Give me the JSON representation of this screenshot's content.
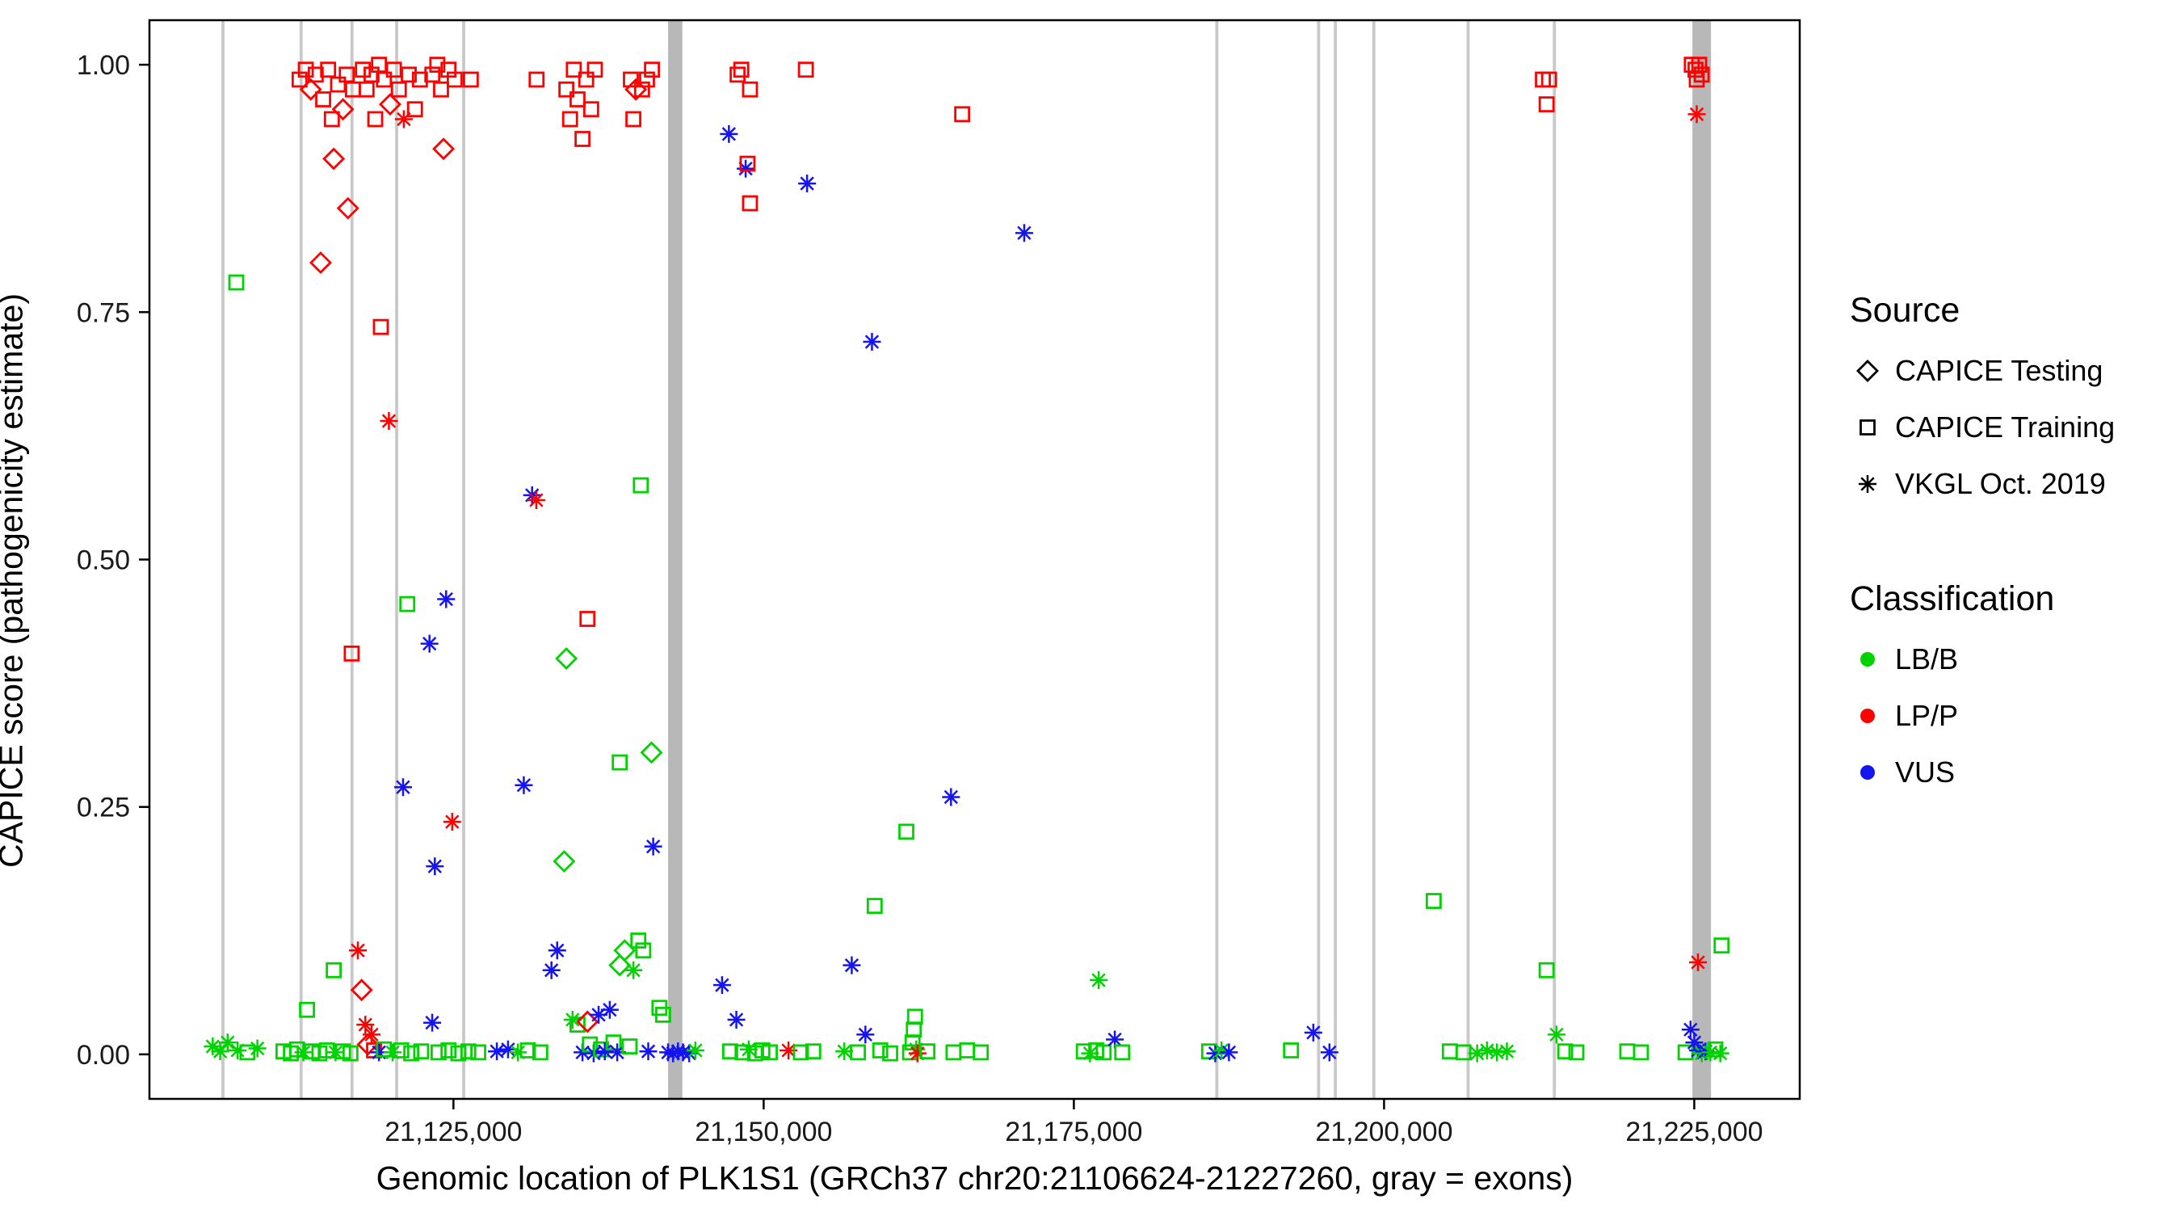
{
  "chart_data": {
    "type": "scatter",
    "title": "",
    "xlabel": "Genomic location of PLK1S1 (GRCh37 chr20:21106624-21227260, gray = exons)",
    "ylabel": "CAPICE score (pathogenicity estimate)",
    "xlim": [
      21100500,
      21233500
    ],
    "ylim": [
      -0.045,
      1.045
    ],
    "grid": false,
    "panel_border_color": "#000000",
    "background_color": "#ffffff",
    "exon_color_thin": "#c9c9c9",
    "exon_color_thick": "#b8b8b8",
    "x_ticks": [
      {
        "value": 21125000,
        "label": "21,125,000"
      },
      {
        "value": 21150000,
        "label": "21,150,000"
      },
      {
        "value": 21175000,
        "label": "21,175,000"
      },
      {
        "value": 21200000,
        "label": "21,200,000"
      },
      {
        "value": 21225000,
        "label": "21,225,000"
      }
    ],
    "y_ticks": [
      {
        "value": 0.0,
        "label": "0.00"
      },
      {
        "value": 0.25,
        "label": "0.25"
      },
      {
        "value": 0.5,
        "label": "0.50"
      },
      {
        "value": 0.75,
        "label": "0.75"
      },
      {
        "value": 1.0,
        "label": "1.00"
      }
    ],
    "exons": [
      [
        21106300,
        21106550
      ],
      [
        21112600,
        21112850
      ],
      [
        21116700,
        21116950
      ],
      [
        21120300,
        21120550
      ],
      [
        21125700,
        21125950
      ],
      [
        21142300,
        21143450
      ],
      [
        21186400,
        21186650
      ],
      [
        21194600,
        21194850
      ],
      [
        21195950,
        21196200
      ],
      [
        21199050,
        21199300
      ],
      [
        21206650,
        21206900
      ],
      [
        21213600,
        21213850
      ],
      [
        21224850,
        21226350
      ]
    ],
    "marker_codes": {
      "d": "CAPICE Testing (open diamond)",
      "s": "CAPICE Training (open square)",
      "a": "VKGL Oct. 2019 (asterisk)"
    },
    "class_codes": {
      "g": "LB/B",
      "r": "LP/P",
      "b": "VUS"
    },
    "colors": {
      "g": "#00d300",
      "r": "#ff0000",
      "b": "#1414f0"
    },
    "points": [
      [
        21105600,
        0.008,
        "a",
        "g"
      ],
      [
        21106200,
        0.003,
        "a",
        "g"
      ],
      [
        21106800,
        0.012,
        "a",
        "g"
      ],
      [
        21107500,
        0.78,
        "s",
        "g"
      ],
      [
        21107600,
        0.004,
        "a",
        "g"
      ],
      [
        21108400,
        0.002,
        "s",
        "g"
      ],
      [
        21109200,
        0.006,
        "a",
        "g"
      ],
      [
        21111300,
        0.003,
        "s",
        "g"
      ],
      [
        21111900,
        0.001,
        "s",
        "g"
      ],
      [
        21112400,
        0.005,
        "s",
        "g"
      ],
      [
        21112900,
        0.002,
        "a",
        "g"
      ],
      [
        21113200,
        0.045,
        "s",
        "g"
      ],
      [
        21113600,
        0.003,
        "s",
        "g"
      ],
      [
        21114200,
        0.001,
        "s",
        "g"
      ],
      [
        21114800,
        0.004,
        "s",
        "g"
      ],
      [
        21115350,
        0.085,
        "s",
        "g"
      ],
      [
        21115500,
        0.002,
        "a",
        "g"
      ],
      [
        21116100,
        0.003,
        "s",
        "g"
      ],
      [
        21116700,
        0.001,
        "s",
        "g"
      ],
      [
        21112600,
        0.985,
        "s",
        "r"
      ],
      [
        21113100,
        0.995,
        "s",
        "r"
      ],
      [
        21113500,
        0.975,
        "d",
        "r"
      ],
      [
        21113900,
        0.99,
        "s",
        "r"
      ],
      [
        21114300,
        0.8,
        "d",
        "r"
      ],
      [
        21114500,
        0.965,
        "s",
        "r"
      ],
      [
        21114900,
        0.995,
        "s",
        "r"
      ],
      [
        21115200,
        0.945,
        "s",
        "r"
      ],
      [
        21115350,
        0.905,
        "d",
        "r"
      ],
      [
        21115700,
        0.98,
        "s",
        "r"
      ],
      [
        21116100,
        0.955,
        "d",
        "r"
      ],
      [
        21116400,
        0.99,
        "s",
        "r"
      ],
      [
        21116500,
        0.855,
        "d",
        "r"
      ],
      [
        21116800,
        0.405,
        "s",
        "r"
      ],
      [
        21116900,
        0.975,
        "s",
        "r"
      ],
      [
        21117300,
        0.105,
        "a",
        "r"
      ],
      [
        21117600,
        0.065,
        "d",
        "r"
      ],
      [
        21117900,
        0.03,
        "a",
        "r"
      ],
      [
        21118100,
        0.01,
        "d",
        "r"
      ],
      [
        21118400,
        0.02,
        "a",
        "r"
      ],
      [
        21118600,
        0.004,
        "s",
        "r"
      ],
      [
        21119000,
        0.002,
        "a",
        "b"
      ],
      [
        21119400,
        0.005,
        "s",
        "g"
      ],
      [
        21117700,
        0.995,
        "s",
        "r"
      ],
      [
        21118000,
        0.975,
        "s",
        "r"
      ],
      [
        21118400,
        0.99,
        "s",
        "r"
      ],
      [
        21118700,
        0.945,
        "s",
        "r"
      ],
      [
        21119000,
        1.0,
        "s",
        "r"
      ],
      [
        21119150,
        0.735,
        "s",
        "r"
      ],
      [
        21119400,
        0.985,
        "s",
        "r"
      ],
      [
        21119800,
        0.64,
        "a",
        "r"
      ],
      [
        21119900,
        0.96,
        "d",
        "r"
      ],
      [
        21120200,
        0.995,
        "s",
        "r"
      ],
      [
        21120600,
        0.975,
        "s",
        "r"
      ],
      [
        21121000,
        0.945,
        "a",
        "r"
      ],
      [
        21121400,
        0.99,
        "s",
        "r"
      ],
      [
        21121900,
        0.955,
        "s",
        "r"
      ],
      [
        21122300,
        0.985,
        "s",
        "r"
      ],
      [
        21120940,
        0.27,
        "a",
        "b"
      ],
      [
        21121280,
        0.455,
        "s",
        "g"
      ],
      [
        21123070,
        0.415,
        "a",
        "b"
      ],
      [
        21123500,
        0.19,
        "a",
        "b"
      ],
      [
        21124410,
        0.46,
        "a",
        "b"
      ],
      [
        21124900,
        0.235,
        "a",
        "r"
      ],
      [
        21123300,
        0.99,
        "s",
        "r"
      ],
      [
        21123700,
        1.0,
        "s",
        "r"
      ],
      [
        21124000,
        0.975,
        "s",
        "r"
      ],
      [
        21124200,
        0.915,
        "d",
        "r"
      ],
      [
        21124600,
        0.995,
        "s",
        "r"
      ],
      [
        21125100,
        0.985,
        "s",
        "r"
      ],
      [
        21126400,
        0.985,
        "s",
        "r"
      ],
      [
        21120100,
        0.002,
        "a",
        "g"
      ],
      [
        21120800,
        0.004,
        "s",
        "g"
      ],
      [
        21121600,
        0.001,
        "s",
        "g"
      ],
      [
        21122400,
        0.003,
        "s",
        "g"
      ],
      [
        21123290,
        0.032,
        "a",
        "b"
      ],
      [
        21123800,
        0.002,
        "s",
        "g"
      ],
      [
        21124600,
        0.004,
        "s",
        "g"
      ],
      [
        21125400,
        0.001,
        "s",
        "g"
      ],
      [
        21126200,
        0.003,
        "s",
        "g"
      ],
      [
        21127000,
        0.002,
        "s",
        "g"
      ],
      [
        21128500,
        0.003,
        "a",
        "b"
      ],
      [
        21129400,
        0.005,
        "a",
        "b"
      ],
      [
        21130200,
        0.002,
        "a",
        "g"
      ],
      [
        21130670,
        0.272,
        "a",
        "b"
      ],
      [
        21131000,
        0.004,
        "s",
        "g"
      ],
      [
        21131340,
        0.565,
        "a",
        "b"
      ],
      [
        21131680,
        0.56,
        "a",
        "r"
      ],
      [
        21131700,
        0.985,
        "s",
        "r"
      ],
      [
        21132000,
        0.002,
        "s",
        "g"
      ],
      [
        21132900,
        0.085,
        "a",
        "b"
      ],
      [
        21133360,
        0.105,
        "a",
        "b"
      ],
      [
        21133920,
        0.195,
        "d",
        "g"
      ],
      [
        21134100,
        0.975,
        "s",
        "r"
      ],
      [
        21134400,
        0.945,
        "s",
        "r"
      ],
      [
        21134700,
        0.995,
        "s",
        "r"
      ],
      [
        21135000,
        0.965,
        "s",
        "r"
      ],
      [
        21135400,
        0.925,
        "s",
        "r"
      ],
      [
        21135700,
        0.985,
        "s",
        "r"
      ],
      [
        21136100,
        0.955,
        "s",
        "r"
      ],
      [
        21136400,
        0.995,
        "s",
        "r"
      ],
      [
        21134100,
        0.4,
        "d",
        "g"
      ],
      [
        21135800,
        0.44,
        "s",
        "r"
      ],
      [
        21134600,
        0.035,
        "a",
        "g"
      ],
      [
        21135000,
        0.03,
        "s",
        "g"
      ],
      [
        21135400,
        0.002,
        "a",
        "b"
      ],
      [
        21135800,
        0.033,
        "d",
        "r"
      ],
      [
        21136000,
        0.01,
        "s",
        "g"
      ],
      [
        21136300,
        0.001,
        "a",
        "b"
      ],
      [
        21136700,
        0.04,
        "a",
        "b"
      ],
      [
        21136900,
        0.005,
        "s",
        "g"
      ],
      [
        21137200,
        0.003,
        "a",
        "b"
      ],
      [
        21137600,
        0.045,
        "a",
        "b"
      ],
      [
        21137900,
        0.012,
        "s",
        "g"
      ],
      [
        21138200,
        0.002,
        "a",
        "b"
      ],
      [
        21138400,
        0.09,
        "d",
        "g"
      ],
      [
        21138800,
        0.105,
        "d",
        "g"
      ],
      [
        21139200,
        0.008,
        "s",
        "g"
      ],
      [
        21139500,
        0.085,
        "a",
        "g"
      ],
      [
        21139900,
        0.115,
        "s",
        "g"
      ],
      [
        21140300,
        0.105,
        "s",
        "g"
      ],
      [
        21140700,
        0.003,
        "a",
        "b"
      ],
      [
        21141100,
        0.21,
        "a",
        "b"
      ],
      [
        21141600,
        0.047,
        "s",
        "g"
      ],
      [
        21141900,
        0.04,
        "s",
        "g"
      ],
      [
        21142300,
        0.002,
        "a",
        "b"
      ],
      [
        21142700,
        0.001,
        "a",
        "b"
      ],
      [
        21143100,
        0.003,
        "a",
        "b"
      ],
      [
        21143500,
        0.002,
        "a",
        "b"
      ],
      [
        21144000,
        0.001,
        "a",
        "b"
      ],
      [
        21144500,
        0.004,
        "a",
        "g"
      ],
      [
        21138400,
        0.295,
        "s",
        "g"
      ],
      [
        21140100,
        0.575,
        "s",
        "g"
      ],
      [
        21140960,
        0.305,
        "d",
        "g"
      ],
      [
        21139300,
        0.985,
        "s",
        "r"
      ],
      [
        21139700,
        0.975,
        "d",
        "r"
      ],
      [
        21140200,
        0.975,
        "s",
        "r"
      ],
      [
        21140600,
        0.985,
        "s",
        "r"
      ],
      [
        21139500,
        0.945,
        "s",
        "r"
      ],
      [
        21141000,
        0.995,
        "s",
        "r"
      ],
      [
        21147200,
        0.93,
        "a",
        "b"
      ],
      [
        21147900,
        0.99,
        "s",
        "r"
      ],
      [
        21148200,
        0.995,
        "s",
        "r"
      ],
      [
        21148550,
        0.895,
        "a",
        "b"
      ],
      [
        21148700,
        0.9,
        "s",
        "r"
      ],
      [
        21148900,
        0.86,
        "s",
        "r"
      ],
      [
        21148900,
        0.975,
        "s",
        "r"
      ],
      [
        21153400,
        0.995,
        "s",
        "r"
      ],
      [
        21153500,
        0.88,
        "a",
        "b"
      ],
      [
        21146650,
        0.07,
        "a",
        "b"
      ],
      [
        21147300,
        0.003,
        "s",
        "g"
      ],
      [
        21147800,
        0.035,
        "a",
        "b"
      ],
      [
        21148300,
        0.002,
        "s",
        "g"
      ],
      [
        21148800,
        0.005,
        "a",
        "g"
      ],
      [
        21149300,
        0.001,
        "s",
        "g"
      ],
      [
        21149900,
        0.004,
        "s",
        "g"
      ],
      [
        21150500,
        0.002,
        "s",
        "g"
      ],
      [
        21152000,
        0.004,
        "a",
        "r"
      ],
      [
        21153000,
        0.002,
        "s",
        "g"
      ],
      [
        21154000,
        0.003,
        "s",
        "g"
      ],
      [
        21156500,
        0.003,
        "a",
        "g"
      ],
      [
        21157100,
        0.09,
        "a",
        "b"
      ],
      [
        21157600,
        0.002,
        "s",
        "g"
      ],
      [
        21158200,
        0.02,
        "a",
        "b"
      ],
      [
        21158730,
        0.72,
        "a",
        "b"
      ],
      [
        21158950,
        0.15,
        "s",
        "g"
      ],
      [
        21159400,
        0.004,
        "s",
        "g"
      ],
      [
        21160200,
        0.001,
        "s",
        "g"
      ],
      [
        21161500,
        0.225,
        "s",
        "g"
      ],
      [
        21161800,
        0.002,
        "s",
        "g"
      ],
      [
        21162000,
        0.012,
        "s",
        "g"
      ],
      [
        21162100,
        0.025,
        "s",
        "g"
      ],
      [
        21162200,
        0.038,
        "s",
        "g"
      ],
      [
        21162300,
        0.005,
        "a",
        "g"
      ],
      [
        21162400,
        0.001,
        "a",
        "r"
      ],
      [
        21163200,
        0.003,
        "s",
        "g"
      ],
      [
        21165100,
        0.26,
        "a",
        "b"
      ],
      [
        21165300,
        0.002,
        "s",
        "g"
      ],
      [
        21166000,
        0.95,
        "s",
        "r"
      ],
      [
        21166400,
        0.004,
        "s",
        "g"
      ],
      [
        21167500,
        0.002,
        "s",
        "g"
      ],
      [
        21171000,
        0.83,
        "a",
        "b"
      ],
      [
        21175800,
        0.003,
        "s",
        "g"
      ],
      [
        21176300,
        0.001,
        "a",
        "g"
      ],
      [
        21176800,
        0.004,
        "s",
        "g"
      ],
      [
        21177000,
        0.075,
        "a",
        "g"
      ],
      [
        21177400,
        0.002,
        "s",
        "g"
      ],
      [
        21178300,
        0.015,
        "a",
        "b"
      ],
      [
        21178900,
        0.002,
        "s",
        "g"
      ],
      [
        21185900,
        0.003,
        "s",
        "g"
      ],
      [
        21186400,
        0.001,
        "a",
        "b"
      ],
      [
        21186900,
        0.004,
        "a",
        "g"
      ],
      [
        21187500,
        0.002,
        "a",
        "b"
      ],
      [
        21192500,
        0.004,
        "s",
        "g"
      ],
      [
        21194300,
        0.022,
        "a",
        "b"
      ],
      [
        21195600,
        0.002,
        "a",
        "b"
      ],
      [
        21204000,
        0.155,
        "s",
        "g"
      ],
      [
        21205300,
        0.003,
        "s",
        "g"
      ],
      [
        21206400,
        0.002,
        "s",
        "g"
      ],
      [
        21207500,
        0.001,
        "a",
        "g"
      ],
      [
        21208300,
        0.004,
        "a",
        "g"
      ],
      [
        21209100,
        0.002,
        "a",
        "g"
      ],
      [
        21209900,
        0.003,
        "a",
        "g"
      ],
      [
        21212800,
        0.985,
        "s",
        "r"
      ],
      [
        21213300,
        0.985,
        "s",
        "r"
      ],
      [
        21213100,
        0.96,
        "s",
        "r"
      ],
      [
        21213100,
        0.085,
        "s",
        "g"
      ],
      [
        21213900,
        0.02,
        "a",
        "g"
      ],
      [
        21214600,
        0.003,
        "s",
        "g"
      ],
      [
        21215500,
        0.002,
        "s",
        "g"
      ],
      [
        21219600,
        0.003,
        "s",
        "g"
      ],
      [
        21220700,
        0.002,
        "s",
        "g"
      ],
      [
        21224800,
        1.0,
        "s",
        "r"
      ],
      [
        21225100,
        0.995,
        "s",
        "r"
      ],
      [
        21225400,
        1.0,
        "s",
        "r"
      ],
      [
        21225200,
        0.985,
        "s",
        "r"
      ],
      [
        21225600,
        0.99,
        "s",
        "r"
      ],
      [
        21225200,
        0.95,
        "a",
        "r"
      ],
      [
        21225300,
        0.093,
        "a",
        "r"
      ],
      [
        21227200,
        0.11,
        "s",
        "g"
      ],
      [
        21224300,
        0.002,
        "s",
        "g"
      ],
      [
        21224700,
        0.025,
        "a",
        "b"
      ],
      [
        21225000,
        0.012,
        "a",
        "b"
      ],
      [
        21225300,
        0.004,
        "a",
        "b"
      ],
      [
        21225600,
        0.001,
        "a",
        "g"
      ],
      [
        21225900,
        0.003,
        "a",
        "b"
      ],
      [
        21226300,
        0.002,
        "a",
        "g"
      ],
      [
        21226700,
        0.005,
        "s",
        "g"
      ],
      [
        21227100,
        0.001,
        "a",
        "g"
      ]
    ]
  },
  "legend": {
    "source": {
      "title": "Source",
      "items": [
        {
          "label": "CAPICE Testing",
          "marker": "d"
        },
        {
          "label": "CAPICE Training",
          "marker": "s"
        },
        {
          "label": "VKGL Oct. 2019",
          "marker": "a"
        }
      ]
    },
    "classification": {
      "title": "Classification",
      "items": [
        {
          "label": "LB/B",
          "color": "#00d300"
        },
        {
          "label": "LP/P",
          "color": "#ff0000"
        },
        {
          "label": "VUS",
          "color": "#1414f0"
        }
      ]
    }
  }
}
